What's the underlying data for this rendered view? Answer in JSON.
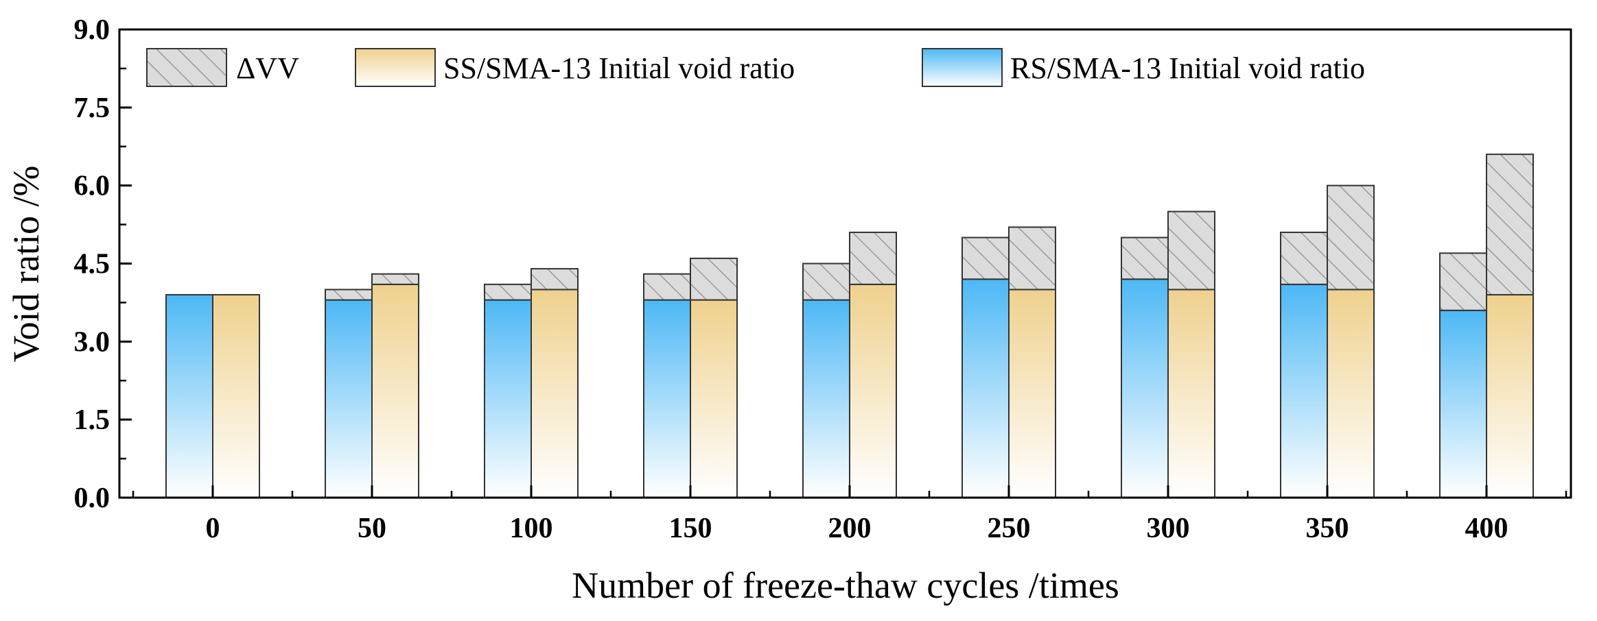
{
  "chart_data": {
    "type": "bar",
    "subtype": "stacked-grouped",
    "categories": [
      "0",
      "50",
      "100",
      "150",
      "200",
      "250",
      "300",
      "350",
      "400"
    ],
    "series": [
      {
        "name": "RS/SMA-13 Initial void ratio",
        "initial": [
          3.9,
          3.8,
          3.8,
          3.8,
          3.8,
          4.2,
          4.2,
          4.1,
          3.6
        ],
        "delta_vv": [
          0.0,
          0.2,
          0.3,
          0.5,
          0.7,
          0.8,
          0.8,
          1.0,
          1.1
        ],
        "color": "#4db8f5"
      },
      {
        "name": "SS/SMA-13 Initial void ratio",
        "initial": [
          3.9,
          4.1,
          4.0,
          3.8,
          4.1,
          4.0,
          4.0,
          4.0,
          3.9
        ],
        "delta_vv": [
          0.0,
          0.2,
          0.4,
          0.8,
          1.0,
          1.2,
          1.5,
          2.0,
          2.7
        ],
        "color": "#efd18e"
      }
    ],
    "stack_series_name": "ΔVV",
    "xlabel": "Number of freeze-thaw cycles /times",
    "ylabel": "Void ratio /%",
    "ylim": [
      0,
      9.0
    ],
    "yticks": [
      "0.0",
      "1.5",
      "3.0",
      "4.5",
      "6.0",
      "7.5",
      "9.0"
    ],
    "grid": false,
    "legend_position": "top",
    "legend": [
      "ΔVV",
      "SS/SMA-13 Initial void ratio",
      "RS/SMA-13 Initial void ratio"
    ],
    "colors": {
      "delta_fill": "#dcdcdc",
      "hatch": "#8c8c8c",
      "rs_top": "#4db8f5",
      "ss_top": "#efd18e",
      "bar_bottom": "#ffffff",
      "outline": "#333333"
    }
  }
}
